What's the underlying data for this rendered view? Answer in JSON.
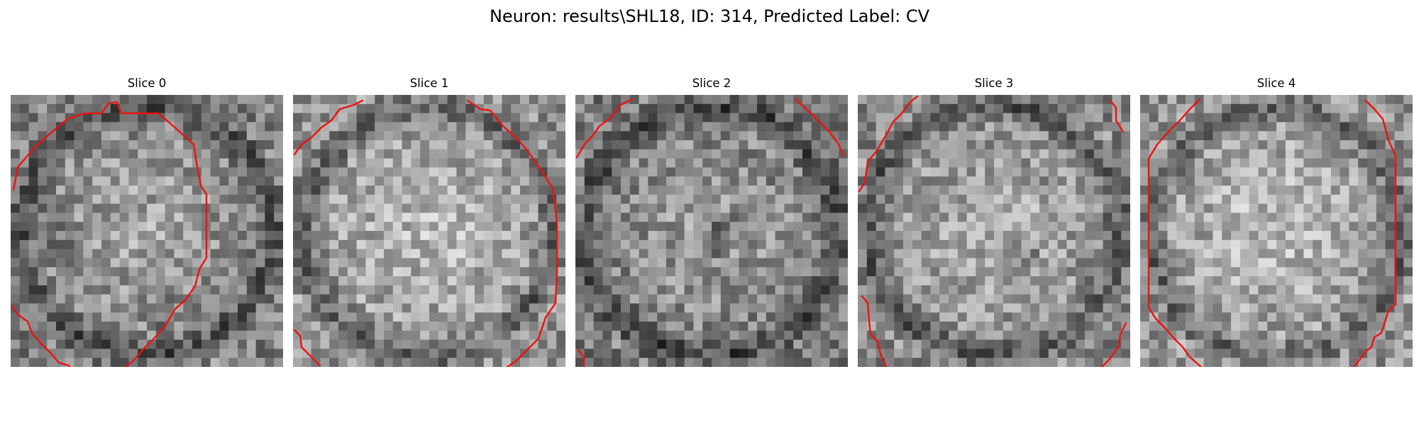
{
  "figure": {
    "title": "Neuron: results\\SHL18, ID: 314, Predicted Label: CV"
  },
  "panels": [
    {
      "title": "Slice 0",
      "mean_shade": 0.55,
      "seed": 11,
      "dark_spots": [
        [
          0.55,
          0.8
        ],
        [
          0.2,
          0.55
        ]
      ]
    },
    {
      "title": "Slice 1",
      "mean_shade": 0.62,
      "seed": 23,
      "dark_spots": []
    },
    {
      "title": "Slice 2",
      "mean_shade": 0.52,
      "seed": 37,
      "dark_spots": [
        [
          0.5,
          0.55
        ],
        [
          0.55,
          0.5
        ]
      ]
    },
    {
      "title": "Slice 3",
      "mean_shade": 0.58,
      "seed": 41,
      "dark_spots": [
        [
          0.6,
          0.58
        ]
      ]
    },
    {
      "title": "Slice 4",
      "mean_shade": 0.63,
      "seed": 53,
      "dark_spots": []
    }
  ],
  "colors": {
    "contour": "#ee1111",
    "background": "#ffffff"
  }
}
